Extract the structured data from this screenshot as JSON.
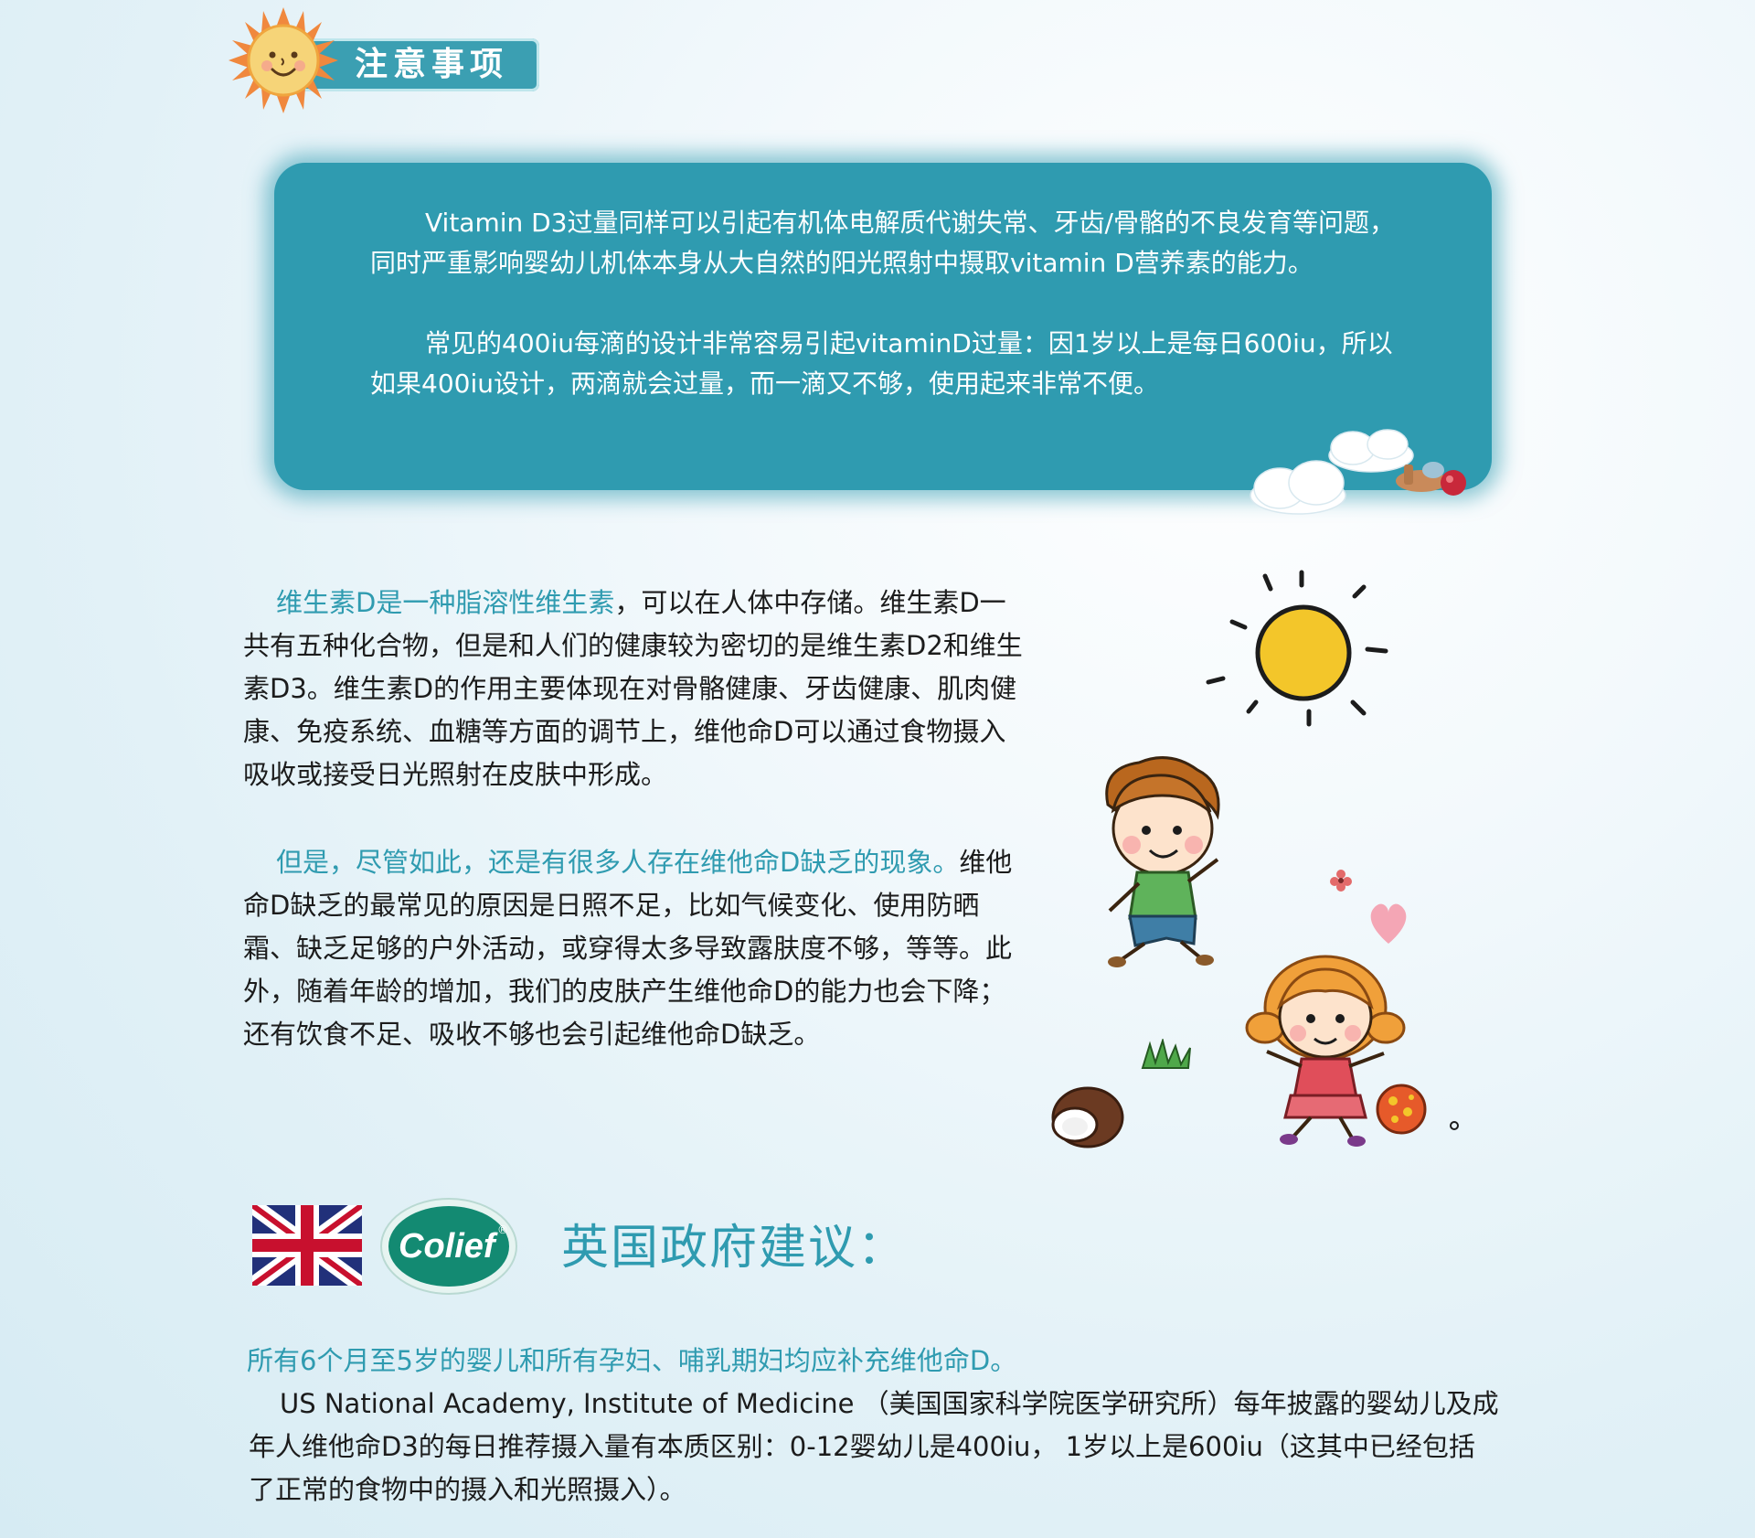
{
  "header": {
    "badge_title": "注意事项"
  },
  "note": {
    "paragraph1": "Vitamin D3过量同样可以引起有机体电解质代谢失常、牙齿/骨骼的不良发育等问题，同时严重影响婴幼儿机体本身从大自然的阳光照射中摄取vitamin D营养素的能力。",
    "paragraph2": "常见的400iu每滴的设计非常容易引起vitaminD过量：因1岁以上是每日600iu，所以如果400iu设计，两滴就会过量，而一滴又不够，使用起来非常不便。"
  },
  "body": {
    "p1_highlight": "维生素D是一种脂溶性维生素",
    "p1_rest": "，可以在人体中存储。维生素D一共有五种化合物，但是和人们的健康较为密切的是维生素D2和维生素D3。维生素D的作用主要体现在对骨骼健康、牙齿健康、肌肉健康、免疫系统、血糖等方面的调节上，维他命D可以通过食物摄入吸收或接受日光照射在皮肤中形成。",
    "p2_highlight": "但是，尽管如此，还是有很多人存在维他命D缺乏的现象。",
    "p2_rest": "维他命D缺乏的最常见的原因是日照不足，比如气候变化、使用防晒霜、缺乏足够的户外活动，或穿得太多导致露肤度不够，等等。此外，随着年龄的增加，我们的皮肤产生维他命D的能力也会下降；还有饮食不足、吸收不够也会引起维他命D缺乏。"
  },
  "uk_section": {
    "logo_text": "Colief",
    "logo_mark": "®",
    "title": "英国政府建议：",
    "recommendation": "所有6个月至5岁的婴儿和所有孕妇、哺乳期妇均应补充维他命D。",
    "paragraph": "US National Academy, Institute of Medicine （美国国家科学院医学研究所）每年披露的婴幼儿及成年人维他命D3的每日推荐摄入量有本质区别：0-12婴幼儿是400iu， 1岁以上是600iu（这其中已经包括了正常的食物中的摄入和光照摄入）。"
  },
  "icons": {
    "badge_sun": "smiling-sun-icon",
    "doodle_sun": "doodle-sun-icon",
    "flag": "union-jack-flag-icon",
    "airplane": "cartoon-airplane-icon",
    "boy": "cartoon-boy-icon",
    "girl": "cartoon-girl-icon",
    "heart": "heart-icon",
    "coconut": "coconut-icon",
    "ball": "ball-icon",
    "grass": "grass-icon"
  },
  "colors": {
    "teal": "#2f9bb0",
    "sun_yellow": "#f3c62a",
    "sun_orange": "#f0883e"
  }
}
